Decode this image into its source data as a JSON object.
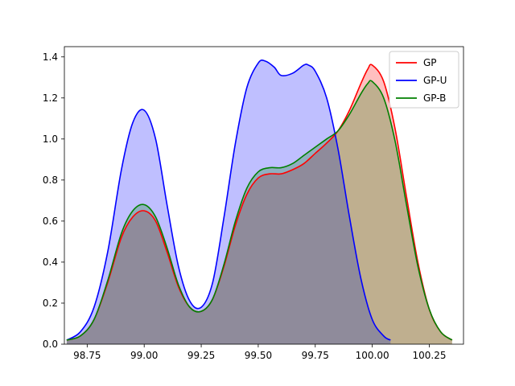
{
  "chart_data": {
    "type": "area",
    "title": "",
    "xlabel": "",
    "ylabel": "",
    "xlim": [
      98.65,
      100.4
    ],
    "ylim": [
      0.0,
      1.45
    ],
    "grid": false,
    "legend_position": "top-right",
    "x_ticks": [
      98.75,
      99.0,
      99.25,
      99.5,
      99.75,
      100.0,
      100.25
    ],
    "x_tick_labels": [
      "98.75",
      "99.00",
      "99.25",
      "99.50",
      "99.75",
      "100.00",
      "100.25"
    ],
    "y_ticks": [
      0.0,
      0.2,
      0.4,
      0.6,
      0.8,
      1.0,
      1.2,
      1.4
    ],
    "y_tick_labels": [
      "0.0",
      "0.2",
      "0.4",
      "0.6",
      "0.8",
      "1.0",
      "1.2",
      "1.4"
    ],
    "series": [
      {
        "name": "GP",
        "color": "#ff0000",
        "x": [
          98.66,
          98.72,
          98.78,
          98.84,
          98.9,
          98.95,
          99.0,
          99.05,
          99.1,
          99.15,
          99.2,
          99.25,
          99.3,
          99.35,
          99.4,
          99.45,
          99.5,
          99.55,
          99.6,
          99.65,
          99.7,
          99.75,
          99.8,
          99.85,
          99.9,
          99.95,
          99.98,
          100.0,
          100.05,
          100.1,
          100.15,
          100.2,
          100.25,
          100.3,
          100.35
        ],
        "y": [
          0.02,
          0.04,
          0.12,
          0.3,
          0.52,
          0.62,
          0.65,
          0.6,
          0.45,
          0.28,
          0.18,
          0.16,
          0.22,
          0.38,
          0.58,
          0.73,
          0.81,
          0.83,
          0.83,
          0.85,
          0.88,
          0.93,
          0.98,
          1.04,
          1.14,
          1.27,
          1.34,
          1.36,
          1.28,
          1.05,
          0.72,
          0.4,
          0.17,
          0.06,
          0.02
        ]
      },
      {
        "name": "GP-U",
        "color": "#0000ff",
        "x": [
          98.66,
          98.72,
          98.78,
          98.84,
          98.9,
          98.95,
          99.0,
          99.05,
          99.1,
          99.15,
          99.2,
          99.25,
          99.3,
          99.35,
          99.4,
          99.45,
          99.5,
          99.53,
          99.57,
          99.6,
          99.65,
          99.7,
          99.72,
          99.75,
          99.8,
          99.85,
          99.9,
          99.95,
          100.0,
          100.05,
          100.08
        ],
        "y": [
          0.02,
          0.06,
          0.18,
          0.45,
          0.85,
          1.08,
          1.14,
          1.0,
          0.68,
          0.38,
          0.21,
          0.18,
          0.3,
          0.62,
          0.98,
          1.25,
          1.37,
          1.38,
          1.35,
          1.31,
          1.32,
          1.36,
          1.36,
          1.33,
          1.2,
          0.95,
          0.62,
          0.32,
          0.12,
          0.04,
          0.02
        ]
      },
      {
        "name": "GP-B",
        "color": "#008000",
        "x": [
          98.66,
          98.72,
          98.78,
          98.84,
          98.9,
          98.95,
          99.0,
          99.05,
          99.1,
          99.15,
          99.2,
          99.25,
          99.3,
          99.35,
          99.4,
          99.45,
          99.5,
          99.55,
          99.6,
          99.65,
          99.7,
          99.75,
          99.8,
          99.85,
          99.9,
          99.95,
          99.98,
          100.0,
          100.05,
          100.1,
          100.15,
          100.2,
          100.25,
          100.3,
          100.35
        ],
        "y": [
          0.02,
          0.04,
          0.12,
          0.31,
          0.54,
          0.65,
          0.68,
          0.62,
          0.47,
          0.29,
          0.18,
          0.16,
          0.22,
          0.39,
          0.6,
          0.76,
          0.84,
          0.86,
          0.86,
          0.88,
          0.92,
          0.96,
          1.0,
          1.04,
          1.12,
          1.22,
          1.27,
          1.28,
          1.2,
          0.99,
          0.68,
          0.38,
          0.17,
          0.06,
          0.02
        ]
      }
    ],
    "fills": [
      {
        "series": "GP",
        "color": "#ff0000",
        "opacity": 0.25
      },
      {
        "series": "GP-U",
        "color": "#0000ff",
        "opacity": 0.25
      },
      {
        "series": "GP-B",
        "color": "#008000",
        "opacity": 0.25
      }
    ]
  }
}
